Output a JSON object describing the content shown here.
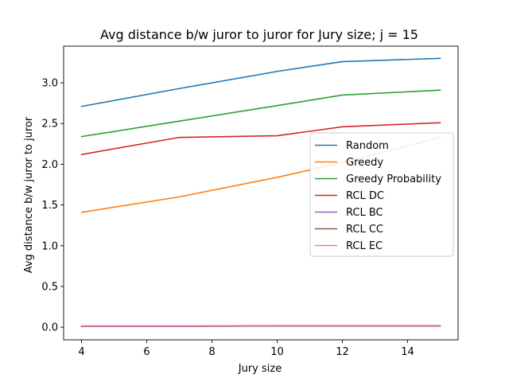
{
  "chart_data": {
    "type": "line",
    "title": "Avg distance b/w juror to juror for Jury size; j = 15",
    "xlabel": "Jury size",
    "ylabel": "Avg distance b/w juror to juror",
    "x": [
      4,
      7,
      10,
      12,
      15
    ],
    "xlim": [
      3.45,
      15.55
    ],
    "ylim": [
      -0.155,
      3.45
    ],
    "xticks": [
      4,
      6,
      8,
      10,
      12,
      14
    ],
    "yticks": [
      0.0,
      0.5,
      1.0,
      1.5,
      2.0,
      2.5,
      3.0
    ],
    "ytick_labels": [
      "0.0",
      "0.5",
      "1.0",
      "1.5",
      "2.0",
      "2.5",
      "3.0"
    ],
    "grid": false,
    "legend_position": "center-right",
    "series": [
      {
        "name": "Random",
        "color": "#1f77b4",
        "values": [
          2.71,
          2.93,
          3.14,
          3.26,
          3.3
        ]
      },
      {
        "name": "Greedy",
        "color": "#ff7f0e",
        "values": [
          1.41,
          1.6,
          1.84,
          2.02,
          2.33
        ]
      },
      {
        "name": "Greedy Probability",
        "color": "#2ca02c",
        "values": [
          2.34,
          2.53,
          2.72,
          2.85,
          2.91
        ]
      },
      {
        "name": "RCL DC",
        "color": "#d62728",
        "values": [
          2.12,
          2.33,
          2.35,
          2.46,
          2.51
        ]
      },
      {
        "name": "RCL BC",
        "color": "#9467bd",
        "values": [
          0.01,
          0.01,
          0.015,
          0.015,
          0.015
        ]
      },
      {
        "name": "RCL CC",
        "color": "#8c564b",
        "values": [
          0.01,
          0.01,
          0.015,
          0.015,
          0.015
        ]
      },
      {
        "name": "RCL EC",
        "color": "#e377c2",
        "values": [
          0.015,
          0.015,
          0.02,
          0.02,
          0.02
        ]
      }
    ]
  }
}
